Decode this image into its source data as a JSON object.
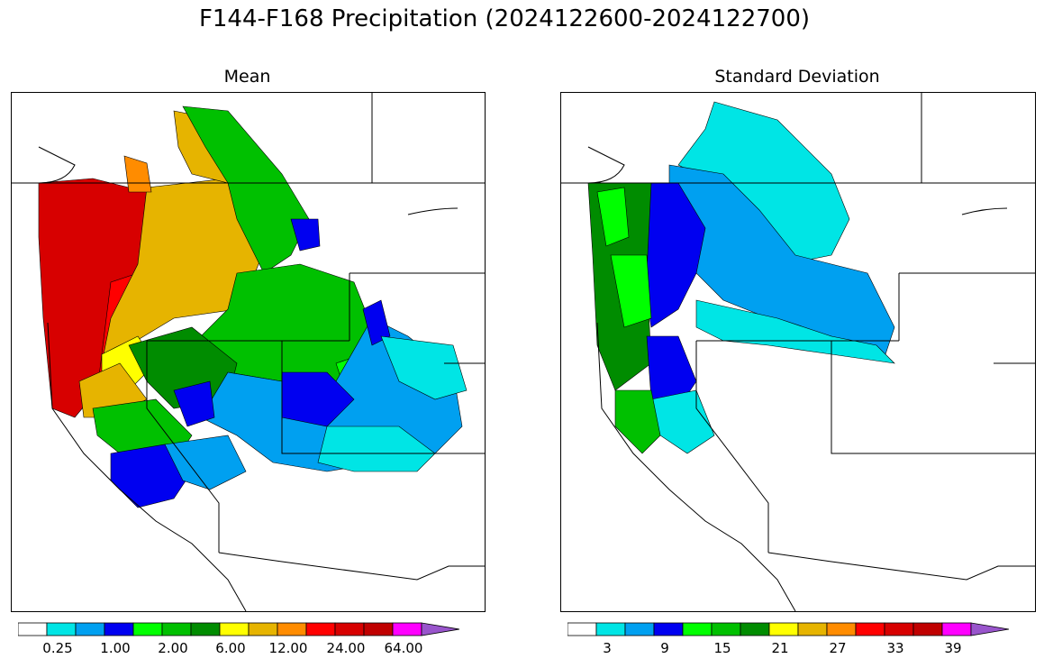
{
  "title": "F144-F168 Precipitation (2024122600-2024122700)",
  "panels": [
    {
      "id": "mean",
      "title": "Mean",
      "colorbar": {
        "colors": [
          "#ffffff",
          "#00e5e5",
          "#00a0f0",
          "#0000f0",
          "#00ff00",
          "#00c000",
          "#008c00",
          "#ffff00",
          "#e6b400",
          "#ff8c00",
          "#ff0000",
          "#d70000",
          "#c00000",
          "#ff00ff",
          "#9955cc"
        ],
        "tick_labels": [
          "0.25",
          "1.00",
          "2.00",
          "6.00",
          "12.00",
          "24.00",
          "64.00"
        ],
        "extend": "max"
      }
    },
    {
      "id": "stdev",
      "title": "Standard Deviation",
      "colorbar": {
        "colors": [
          "#ffffff",
          "#00e5e5",
          "#00a0f0",
          "#0000f0",
          "#00ff00",
          "#00c000",
          "#008c00",
          "#ffff00",
          "#e6b400",
          "#ff8c00",
          "#ff0000",
          "#d70000",
          "#c00000",
          "#ff00ff",
          "#9955cc"
        ],
        "tick_labels": [
          "3",
          "9",
          "15",
          "21",
          "27",
          "33",
          "39"
        ],
        "extend": "max"
      }
    }
  ]
}
